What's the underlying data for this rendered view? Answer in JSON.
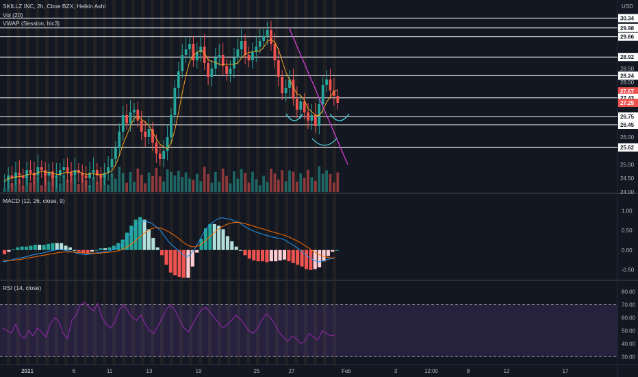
{
  "header": {
    "title": "SKILLZ INC, 2h, Cboe BZX, Heikin Ashi",
    "vol": "Vol (20)",
    "vwap": "VWAP (Session, hlc3)",
    "macd": "MACD (12, 26, close, 9)",
    "rsi": "RSI (14, close)",
    "currency": "USD"
  },
  "chart_data": {
    "type": "candlestick",
    "price_axis": {
      "ticks": [
        "30.34",
        "29.98",
        "29.66",
        "28.92",
        "28.50",
        "28.24",
        "28.00",
        "27.67",
        "27.43",
        "27.25",
        "26.75",
        "26.45",
        "26.00",
        "25.62",
        "25.00",
        "24.50",
        "24.00"
      ],
      "ylim": [
        24.0,
        30.5
      ]
    },
    "horizontal_levels": [
      30.34,
      29.98,
      29.66,
      28.92,
      28.24,
      27.43,
      26.75,
      26.45,
      25.62
    ],
    "highlighted_prices": [
      {
        "value": "27.67",
        "color": "#ef5350"
      },
      {
        "value": "27.25",
        "color": "#ef5350"
      }
    ],
    "macd_axis": {
      "ticks": [
        "1.00",
        "0.50",
        "0.00",
        "-0.50"
      ],
      "ylim": [
        -0.7,
        1.3
      ]
    },
    "rsi_axis": {
      "ticks": [
        "80.00",
        "70.00",
        "60.00",
        "50.00",
        "40.00",
        "30.00"
      ],
      "ylim": [
        26,
        84
      ]
    },
    "time_axis": {
      "labels": [
        "2021",
        "6",
        "11",
        "13",
        "19",
        "25",
        "27",
        "Feb",
        "3",
        "12:00",
        "8",
        "12",
        "17"
      ]
    },
    "trendline": {
      "from": [
        30.0,
        "27 Jan"
      ],
      "to": [
        25.0,
        "late 28 Jan"
      ],
      "color": "#d43fd4"
    },
    "close": [
      24.4,
      24.6,
      24.5,
      24.7,
      24.6,
      24.5,
      24.8,
      24.7,
      24.6,
      24.9,
      24.8,
      24.6,
      24.7,
      24.5,
      24.6,
      24.8,
      24.9,
      24.7,
      24.6,
      24.8,
      24.7,
      24.6,
      24.5,
      24.7,
      24.8,
      24.6,
      24.5,
      24.7,
      24.9,
      25.2,
      25.6,
      26.2,
      26.8,
      26.5,
      26.9,
      27.0,
      26.6,
      26.2,
      26.0,
      26.3,
      25.8,
      25.4,
      25.2,
      25.5,
      26.0,
      26.8,
      27.8,
      28.4,
      29.0,
      29.2,
      29.4,
      28.8,
      29.1,
      29.3,
      28.7,
      28.2,
      28.5,
      28.9,
      29.0,
      28.6,
      28.3,
      28.5,
      28.9,
      29.2,
      29.5,
      29.0,
      28.8,
      29.1,
      29.3,
      29.5,
      29.7,
      29.9,
      29.4,
      28.8,
      28.2,
      27.6,
      27.8,
      28.1,
      27.4,
      27.0,
      27.3,
      26.9,
      26.6,
      26.8,
      26.4,
      27.2,
      27.9,
      28.1,
      27.7,
      27.5,
      27.25
    ],
    "macd": [
      -0.3,
      -0.28,
      -0.25,
      -0.22,
      -0.2,
      -0.18,
      -0.15,
      -0.12,
      -0.1,
      -0.08,
      -0.05,
      -0.02,
      0.0,
      0.02,
      0.0,
      -0.02,
      -0.05,
      -0.08,
      -0.1,
      -0.12,
      -0.1,
      -0.08,
      -0.06,
      -0.05,
      -0.03,
      0.0,
      0.05,
      0.12,
      0.25,
      0.4,
      0.55,
      0.68,
      0.75,
      0.72,
      0.68,
      0.6,
      0.5,
      0.35,
      0.2,
      0.1,
      0.0,
      -0.1,
      -0.18,
      -0.1,
      0.05,
      0.25,
      0.45,
      0.6,
      0.7,
      0.78,
      0.82,
      0.8,
      0.78,
      0.74,
      0.7,
      0.62,
      0.55,
      0.5,
      0.45,
      0.42,
      0.38,
      0.35,
      0.32,
      0.3,
      0.28,
      0.22,
      0.15,
      0.08,
      0.0,
      -0.1,
      -0.18,
      -0.25,
      -0.3,
      -0.28,
      -0.25,
      -0.22,
      -0.2
    ],
    "signal": [
      -0.25,
      -0.26,
      -0.26,
      -0.25,
      -0.24,
      -0.22,
      -0.2,
      -0.18,
      -0.16,
      -0.14,
      -0.12,
      -0.1,
      -0.08,
      -0.06,
      -0.05,
      -0.05,
      -0.05,
      -0.06,
      -0.07,
      -0.08,
      -0.08,
      -0.08,
      -0.08,
      -0.07,
      -0.06,
      -0.05,
      -0.03,
      0.0,
      0.05,
      0.12,
      0.2,
      0.3,
      0.4,
      0.48,
      0.54,
      0.57,
      0.56,
      0.52,
      0.46,
      0.39,
      0.31,
      0.22,
      0.14,
      0.09,
      0.08,
      0.12,
      0.2,
      0.3,
      0.4,
      0.5,
      0.58,
      0.64,
      0.68,
      0.7,
      0.7,
      0.68,
      0.65,
      0.62,
      0.58,
      0.55,
      0.52,
      0.48,
      0.45,
      0.42,
      0.39,
      0.35,
      0.3,
      0.25,
      0.19,
      0.12,
      0.05,
      -0.03,
      -0.1,
      -0.15,
      -0.18,
      -0.2,
      -0.2
    ],
    "rsi": [
      52,
      50,
      48,
      55,
      47,
      44,
      50,
      46,
      52,
      49,
      45,
      55,
      60,
      57,
      48,
      44,
      58,
      62,
      70,
      72,
      68,
      65,
      71,
      60,
      55,
      52,
      57,
      66,
      70,
      65,
      60,
      58,
      62,
      55,
      50,
      48,
      54,
      60,
      67,
      70,
      65,
      58,
      52,
      49,
      55,
      61,
      66,
      68,
      64,
      60,
      56,
      52,
      55,
      58,
      62,
      59,
      55,
      50,
      48,
      52,
      58,
      63,
      60,
      55,
      49,
      45,
      42,
      46,
      44,
      40,
      42,
      48,
      45,
      43,
      50,
      48,
      46,
      47
    ]
  }
}
